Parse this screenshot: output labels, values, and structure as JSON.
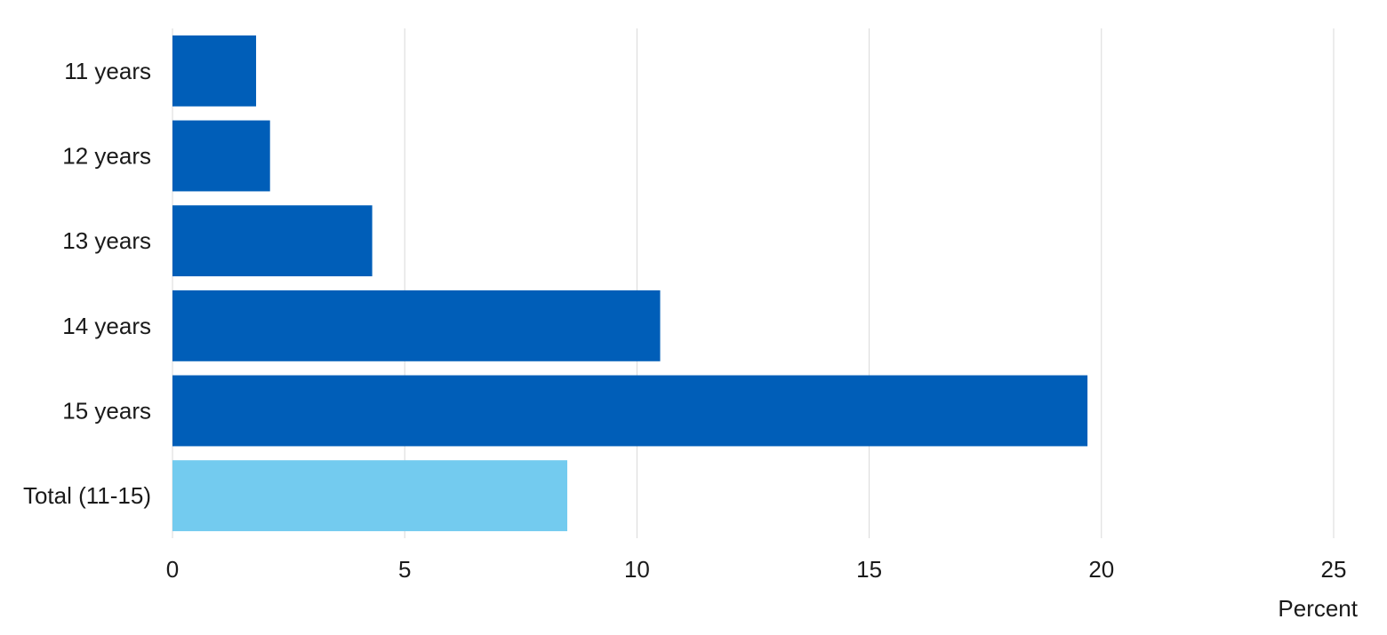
{
  "chart_data": {
    "type": "bar",
    "orientation": "horizontal",
    "categories": [
      "11 years",
      "12 years",
      "13 years",
      "14 years",
      "15 years",
      "Total (11-15)"
    ],
    "values": [
      1.8,
      2.1,
      4.3,
      10.5,
      19.7,
      8.5
    ],
    "bar_colors": [
      "#005eb8",
      "#005eb8",
      "#005eb8",
      "#005eb8",
      "#005eb8",
      "#73cbef"
    ],
    "xlabel": "Percent",
    "ylabel": "",
    "xlim": [
      0,
      25
    ],
    "xticks": [
      0,
      5,
      10,
      15,
      20,
      25
    ],
    "grid": "vertical",
    "legend": "none"
  }
}
